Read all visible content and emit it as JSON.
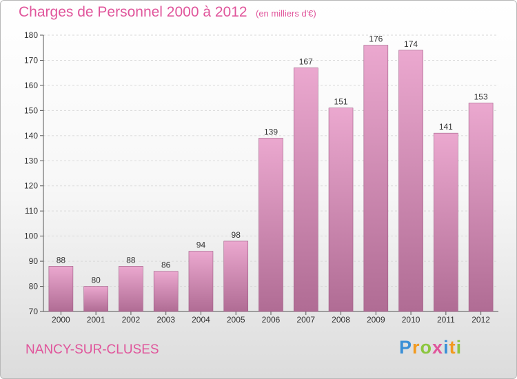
{
  "header": {
    "title": "Charges de Personnel 2000 à 2012",
    "subtitle": "(en milliers d'€)"
  },
  "footer": {
    "commune": "NANCY-SUR-CLUSES",
    "brand_letters": [
      {
        "char": "P",
        "color": "#3a8fd6"
      },
      {
        "char": "r",
        "color": "#f29a1f"
      },
      {
        "char": "o",
        "color": "#8cc63f"
      },
      {
        "char": "x",
        "color": "#e0559b"
      },
      {
        "char": "i",
        "color": "#3a8fd6"
      },
      {
        "char": "t",
        "color": "#f29a1f"
      },
      {
        "char": "i",
        "color": "#8cc63f"
      }
    ]
  },
  "colors": {
    "title": "#e0559b",
    "bar_light": "#eba8cf",
    "bar_dark": "#b06c94",
    "bar_edge": "#9c5a83",
    "grid": "#d9d9d9",
    "axis": "#555555"
  },
  "chart_data": {
    "type": "bar",
    "categories": [
      "2000",
      "2001",
      "2002",
      "2003",
      "2004",
      "2005",
      "2006",
      "2007",
      "2008",
      "2009",
      "2010",
      "2011",
      "2012"
    ],
    "values": [
      88,
      80,
      88,
      86,
      94,
      98,
      139,
      167,
      151,
      176,
      174,
      141,
      153
    ],
    "ylim": [
      70,
      180
    ],
    "yticks": [
      70,
      80,
      90,
      100,
      110,
      120,
      130,
      140,
      150,
      160,
      170,
      180
    ],
    "grid": true,
    "legend": "none"
  }
}
